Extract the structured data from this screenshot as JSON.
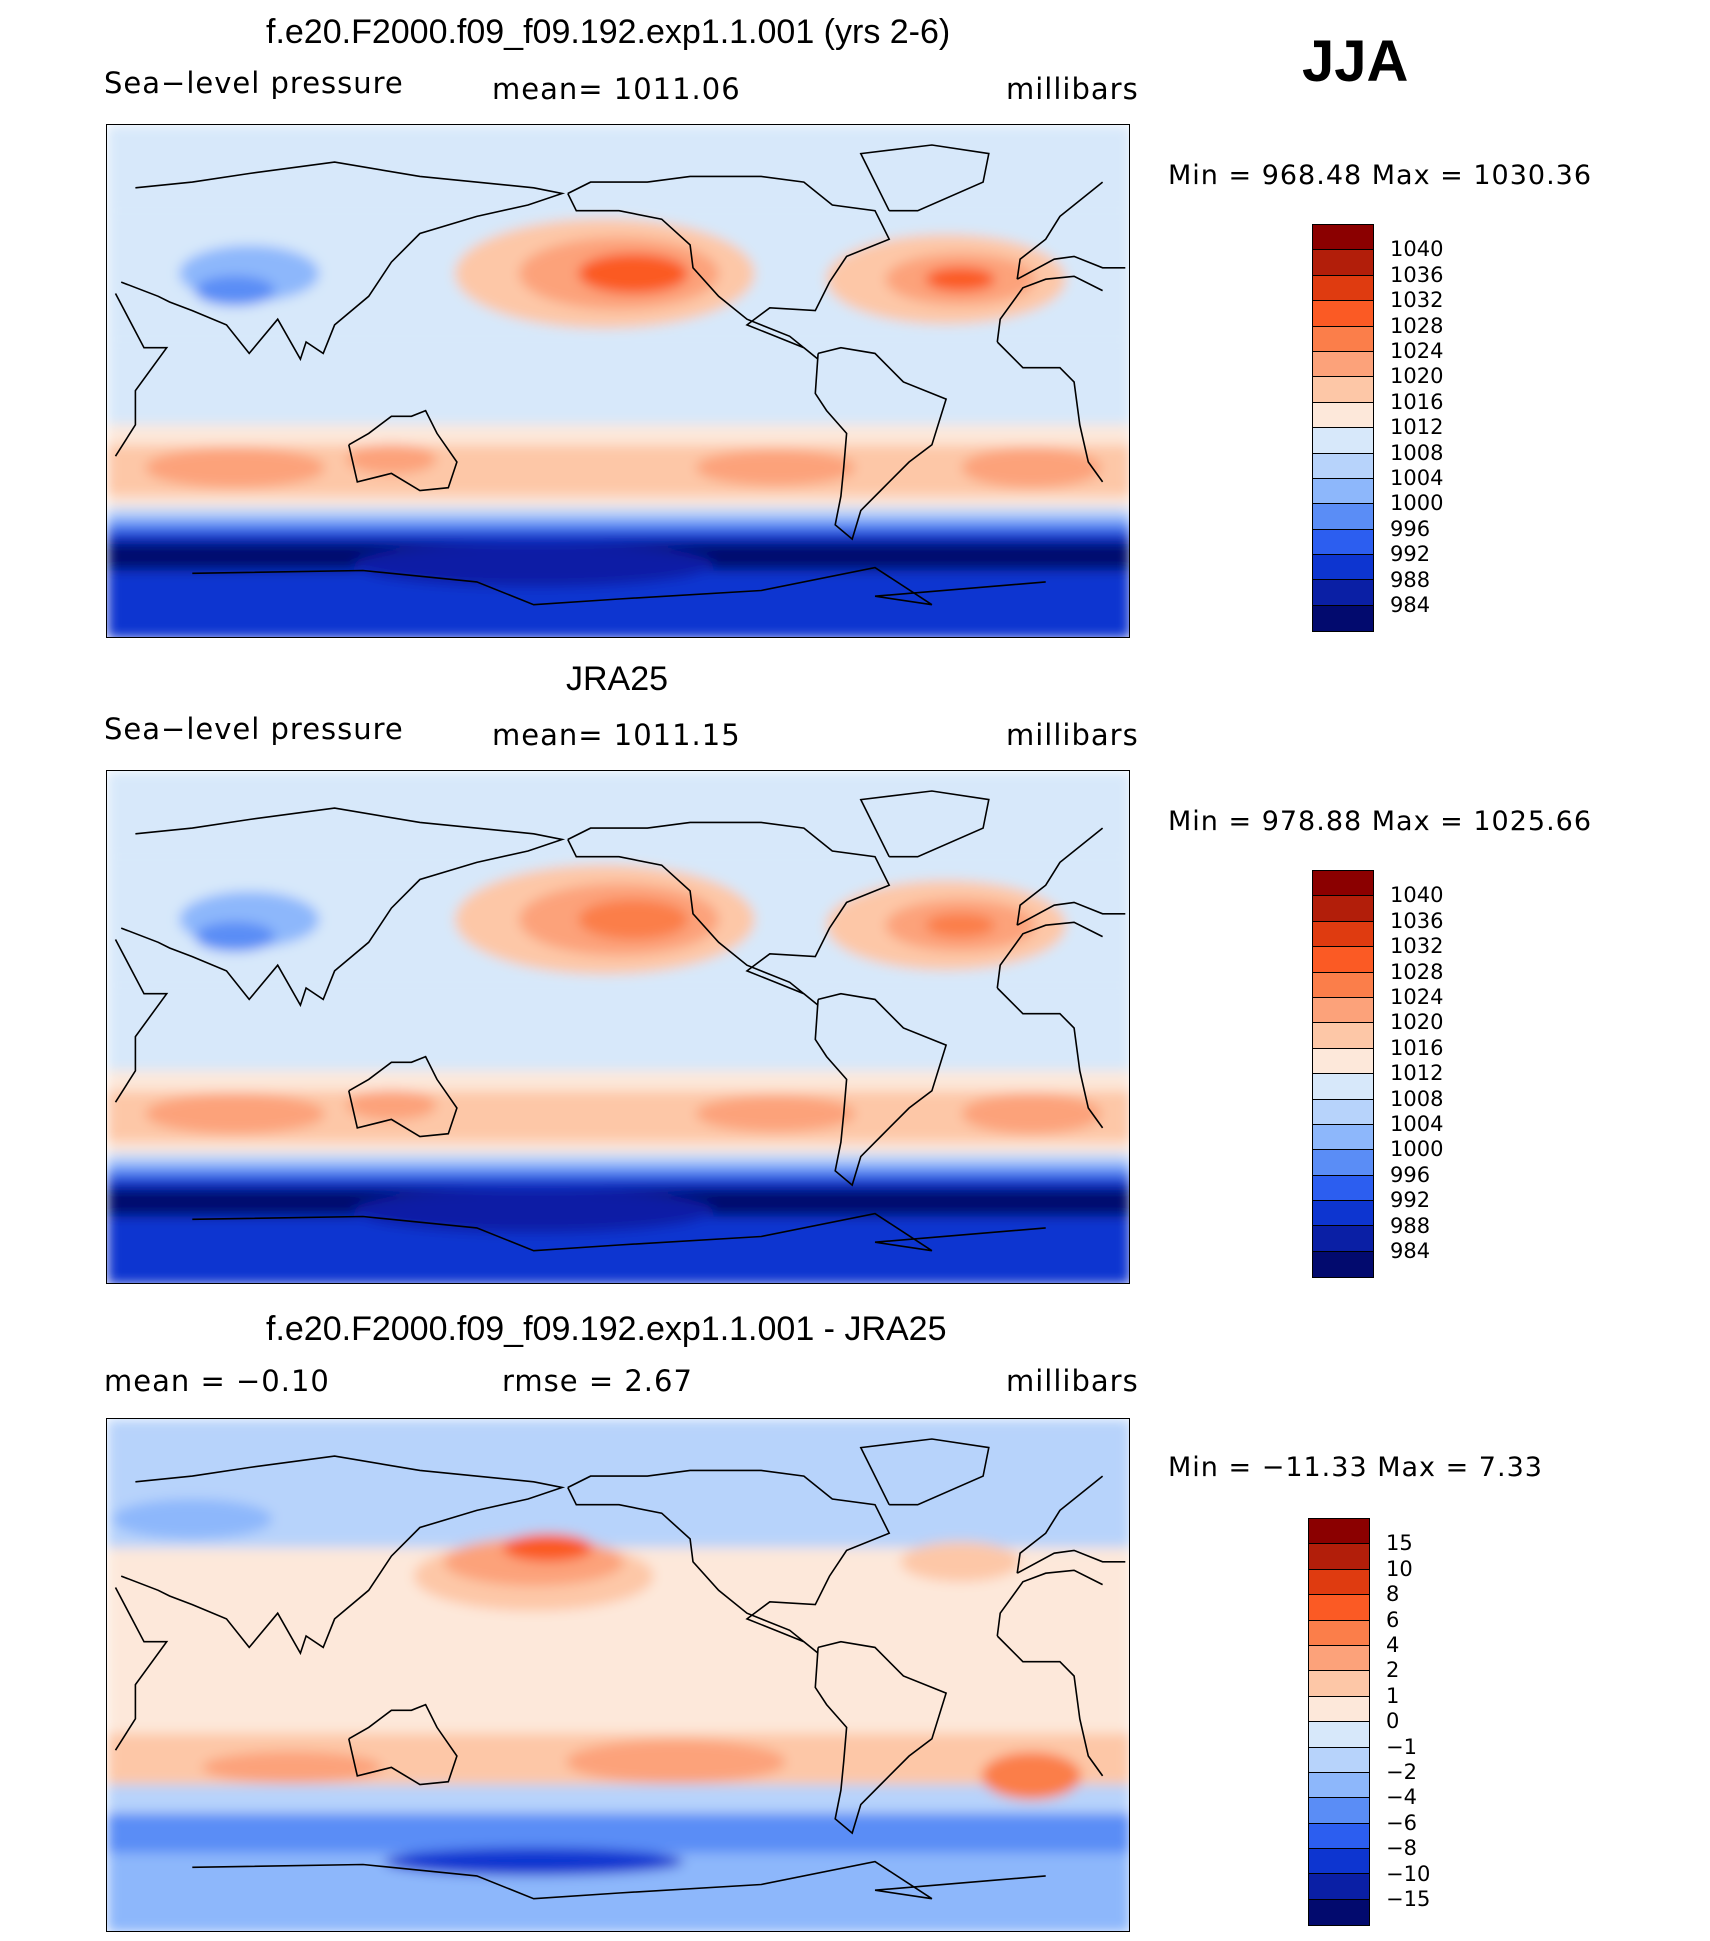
{
  "season": "JJA",
  "panels": [
    {
      "title": "f.e20.F2000.f09_f09.192.exp1.1.001 (yrs 2-6)",
      "left_label": "Sea−level pressure",
      "center_label": "mean=  1011.06",
      "units": "millibars",
      "stats": "Min  =  968.48  Max  =  1030.36",
      "colorbar": {
        "labels": [
          "1040",
          "1036",
          "1032",
          "1028",
          "1024",
          "1020",
          "1016",
          "1012",
          "1008",
          "1004",
          "1000",
          "996",
          "992",
          "988",
          "984"
        ],
        "colors": [
          "#8b0000",
          "#b21e0a",
          "#df3b10",
          "#fb5a24",
          "#fb7e4a",
          "#fca27a",
          "#fdc7a7",
          "#fde8da",
          "#d7e8fa",
          "#b7d3fb",
          "#8db7fb",
          "#5a8df6",
          "#2c5ef0",
          "#0d35d0",
          "#0a1fa5",
          "#020a6e"
        ]
      },
      "field": {
        "subtropical_high_max": 1030.36,
        "polar_trough_min": 968.48,
        "tropics_level": 1010
      }
    },
    {
      "title": "JRA25",
      "left_label": "Sea−level pressure",
      "center_label": "mean=  1011.15",
      "units": "millibars",
      "stats": "Min  =  978.88  Max  =  1025.66",
      "colorbar": {
        "labels": [
          "1040",
          "1036",
          "1032",
          "1028",
          "1024",
          "1020",
          "1016",
          "1012",
          "1008",
          "1004",
          "1000",
          "996",
          "992",
          "988",
          "984"
        ],
        "colors": [
          "#8b0000",
          "#b21e0a",
          "#df3b10",
          "#fb5a24",
          "#fb7e4a",
          "#fca27a",
          "#fdc7a7",
          "#fde8da",
          "#d7e8fa",
          "#b7d3fb",
          "#8db7fb",
          "#5a8df6",
          "#2c5ef0",
          "#0d35d0",
          "#0a1fa5",
          "#020a6e"
        ]
      },
      "field": {
        "subtropical_high_max": 1025.66,
        "polar_trough_min": 978.88,
        "tropics_level": 1010
      }
    },
    {
      "title": "f.e20.F2000.f09_f09.192.exp1.1.001 - JRA25",
      "left_label": "mean  =    −0.10",
      "center_label": "rmse  =     2.67",
      "units": "millibars",
      "stats": "Min  =  −11.33  Max  =       7.33",
      "colorbar": {
        "labels": [
          "15",
          "10",
          "8",
          "6",
          "4",
          "2",
          "1",
          "0",
          "−1",
          "−2",
          "−4",
          "−6",
          "−8",
          "−10",
          "−15"
        ],
        "colors": [
          "#8b0000",
          "#b21e0a",
          "#df3b10",
          "#fb5a24",
          "#fb7e4a",
          "#fca27a",
          "#fdc7a7",
          "#fde8da",
          "#d7e8fa",
          "#b7d3fb",
          "#8db7fb",
          "#5a8df6",
          "#2c5ef0",
          "#0d35d0",
          "#0a1fa5",
          "#020a6e"
        ]
      },
      "field": {
        "max_diff": 7.33,
        "min_diff": -11.33
      }
    }
  ]
}
